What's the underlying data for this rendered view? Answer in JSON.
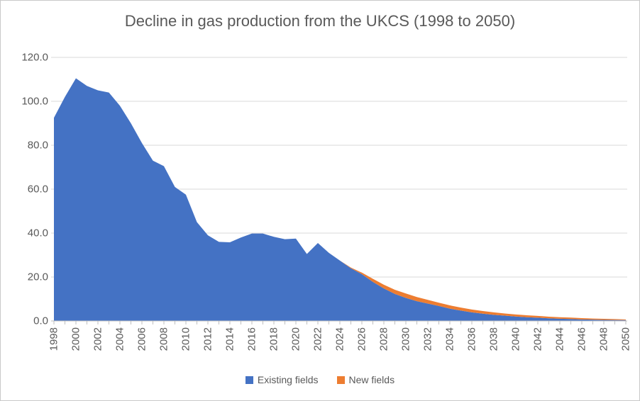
{
  "chart_data": {
    "type": "area",
    "stacked": true,
    "title": "Decline in gas production from the UKCS (1998 to 2050)",
    "xlabel": "",
    "ylabel": "",
    "ylim": [
      0,
      120
    ],
    "y_ticks": [
      0,
      20,
      40,
      60,
      80,
      100,
      120
    ],
    "y_tick_labels": [
      "0.0",
      "20.0",
      "40.0",
      "60.0",
      "80.0",
      "100.0",
      "120.0"
    ],
    "x": [
      1998,
      1999,
      2000,
      2001,
      2002,
      2003,
      2004,
      2005,
      2006,
      2007,
      2008,
      2009,
      2010,
      2011,
      2012,
      2013,
      2014,
      2015,
      2016,
      2017,
      2018,
      2019,
      2020,
      2021,
      2022,
      2023,
      2024,
      2025,
      2026,
      2027,
      2028,
      2029,
      2030,
      2031,
      2032,
      2033,
      2034,
      2035,
      2036,
      2037,
      2038,
      2039,
      2040,
      2041,
      2042,
      2043,
      2044,
      2045,
      2046,
      2047,
      2048,
      2049,
      2050
    ],
    "x_label_step": 2,
    "x_tick_labels": [
      "1998",
      "2000",
      "2002",
      "2004",
      "2006",
      "2008",
      "2010",
      "2012",
      "2014",
      "2016",
      "2018",
      "2020",
      "2022",
      "2024",
      "2026",
      "2028",
      "2030",
      "2032",
      "2034",
      "2036",
      "2038",
      "2040",
      "2042",
      "2044",
      "2046",
      "2048",
      "2050"
    ],
    "grid": true,
    "legend_position": "bottom",
    "series": [
      {
        "name": "Existing fields",
        "color": "#4472C4",
        "values": [
          92.5,
          102,
          110.5,
          107,
          105,
          104,
          98,
          90,
          81,
          73,
          70.5,
          61,
          57.5,
          45,
          39,
          36,
          35.8,
          38,
          39.8,
          39.8,
          38.3,
          37.2,
          37.5,
          30.5,
          35.5,
          31,
          27.5,
          24,
          21.3,
          17.8,
          14.8,
          12.3,
          10.5,
          9,
          7.9,
          6.8,
          5.6,
          4.7,
          3.9,
          3.3,
          2.8,
          2.4,
          2,
          1.7,
          1.5,
          1.2,
          1,
          0.9,
          0.7,
          0.6,
          0.5,
          0.45,
          0.4
        ]
      },
      {
        "name": "New fields",
        "color": "#ED7D31",
        "values": [
          0,
          0,
          0,
          0,
          0,
          0,
          0,
          0,
          0,
          0,
          0,
          0,
          0,
          0,
          0,
          0,
          0,
          0,
          0,
          0,
          0,
          0,
          0,
          0,
          0,
          0,
          0,
          0.3,
          0.7,
          1.4,
          1.7,
          1.9,
          2,
          1.9,
          1.7,
          1.5,
          1.5,
          1.4,
          1.3,
          1.2,
          1.1,
          1,
          0.95,
          0.9,
          0.8,
          0.75,
          0.7,
          0.65,
          0.6,
          0.5,
          0.45,
          0.4,
          0.3
        ]
      }
    ],
    "colors": {
      "gridline": "#D9D9D9",
      "axis_line": "#BFBFBF",
      "text": "#595959",
      "background": "#FFFFFF"
    }
  }
}
